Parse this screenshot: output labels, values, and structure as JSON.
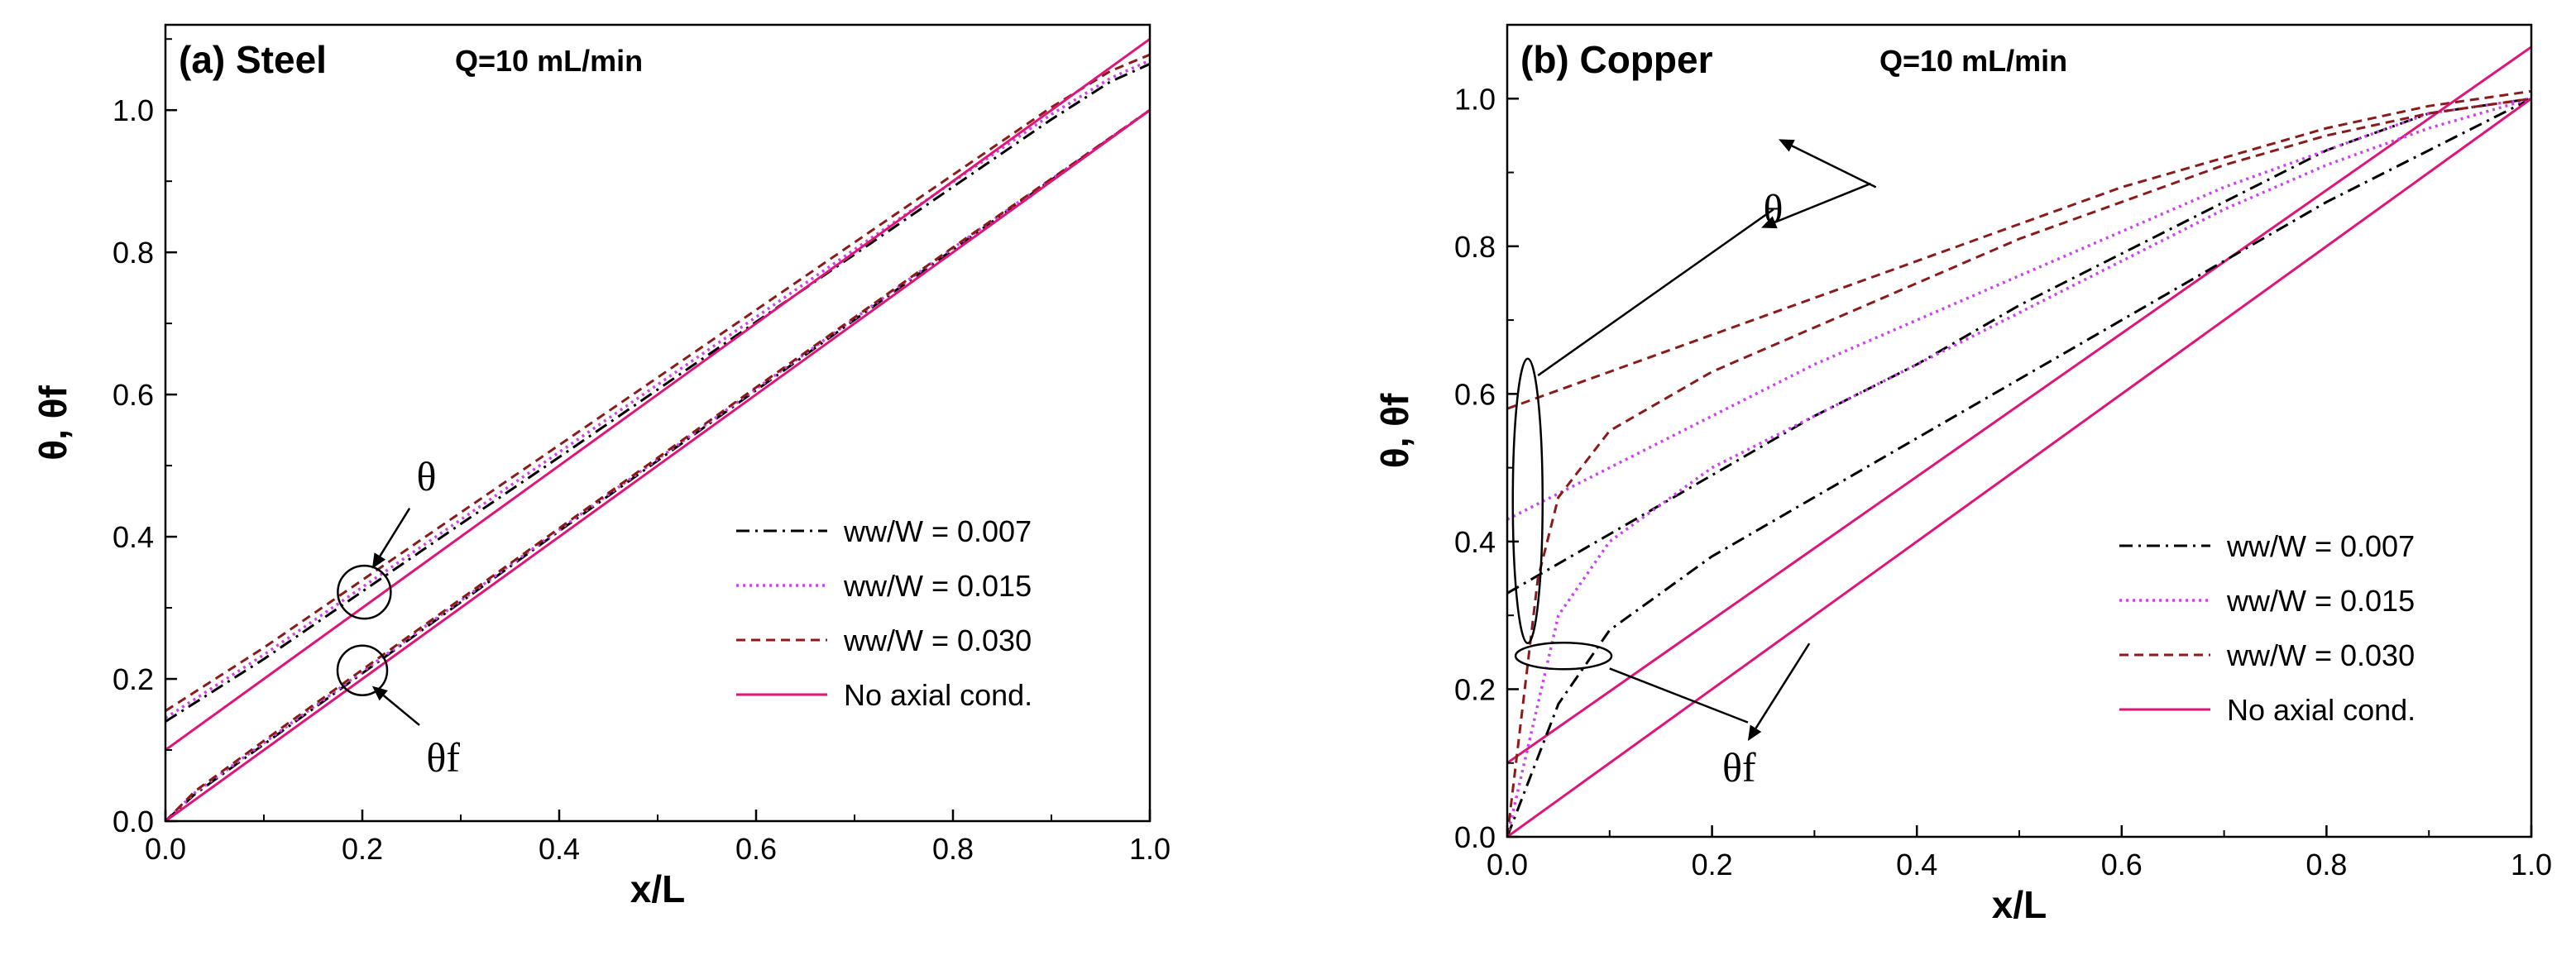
{
  "colors": {
    "s007": "#000000",
    "s015": "#cc44ee",
    "s030": "#8b1a1a",
    "noaxial": "#e0157a"
  },
  "chart_data": [
    {
      "type": "line",
      "panel": "a",
      "title": "(a) Steel",
      "annotation": "Q=10 mL/min",
      "xlabel": "x/L",
      "ylabel": "θ, θf",
      "xlim": [
        0.0,
        1.0
      ],
      "ylim": [
        0.0,
        1.12
      ],
      "xticks": [
        "0.0",
        "0.2",
        "0.4",
        "0.6",
        "0.8",
        "1.0"
      ],
      "yticks": [
        "0.0",
        "0.2",
        "0.4",
        "0.6",
        "0.8",
        "1.0"
      ],
      "legend": [
        "ww/W = 0.007",
        "ww/W = 0.015",
        "ww/W = 0.030",
        "No axial cond."
      ],
      "labels": {
        "theta": "θ",
        "theta_f": "θf"
      },
      "series": [
        {
          "name": "ww/W = 0.007",
          "quantity": "θ",
          "x": [
            0.0,
            0.1,
            0.2,
            0.3,
            0.4,
            0.5,
            0.6,
            0.7,
            0.8,
            0.9,
            0.96,
            1.0
          ],
          "y": [
            0.14,
            0.228,
            0.323,
            0.418,
            0.512,
            0.607,
            0.702,
            0.797,
            0.892,
            0.987,
            1.04,
            1.065
          ]
        },
        {
          "name": "ww/W = 0.015",
          "quantity": "θ",
          "x": [
            0.0,
            0.1,
            0.2,
            0.3,
            0.4,
            0.5,
            0.6,
            0.7,
            0.8,
            0.9,
            0.96,
            1.0
          ],
          "y": [
            0.145,
            0.234,
            0.329,
            0.424,
            0.519,
            0.614,
            0.709,
            0.804,
            0.899,
            0.994,
            1.045,
            1.07
          ]
        },
        {
          "name": "ww/W = 0.030",
          "quantity": "θ",
          "x": [
            0.0,
            0.1,
            0.2,
            0.3,
            0.4,
            0.5,
            0.6,
            0.7,
            0.8,
            0.9,
            0.96,
            1.0
          ],
          "y": [
            0.155,
            0.244,
            0.339,
            0.434,
            0.529,
            0.624,
            0.719,
            0.814,
            0.909,
            1.004,
            1.055,
            1.078
          ]
        },
        {
          "name": "No axial cond.",
          "quantity": "θ",
          "x": [
            0.0,
            1.0
          ],
          "y": [
            0.1,
            1.1
          ]
        },
        {
          "name": "ww/W = 0.007",
          "quantity": "θf",
          "x": [
            0.0,
            0.03,
            0.1,
            0.2,
            0.4,
            0.6,
            0.8,
            1.0
          ],
          "y": [
            0.0,
            0.038,
            0.108,
            0.208,
            0.408,
            0.606,
            0.804,
            1.0
          ]
        },
        {
          "name": "ww/W = 0.015",
          "quantity": "θf",
          "x": [
            0.0,
            0.03,
            0.1,
            0.2,
            0.4,
            0.6,
            0.8,
            1.0
          ],
          "y": [
            0.0,
            0.04,
            0.11,
            0.21,
            0.41,
            0.608,
            0.806,
            1.0
          ]
        },
        {
          "name": "ww/W = 0.030",
          "quantity": "θf",
          "x": [
            0.0,
            0.03,
            0.1,
            0.2,
            0.4,
            0.6,
            0.8,
            1.0
          ],
          "y": [
            0.0,
            0.042,
            0.113,
            0.213,
            0.412,
            0.61,
            0.807,
            1.0
          ]
        },
        {
          "name": "No axial cond.",
          "quantity": "θf",
          "x": [
            0.0,
            1.0
          ],
          "y": [
            0.0,
            1.0
          ]
        }
      ]
    },
    {
      "type": "line",
      "panel": "b",
      "title": "(b) Copper",
      "annotation": "Q=10 mL/min",
      "xlabel": "x/L",
      "ylabel": "θ, θf",
      "xlim": [
        0.0,
        1.0
      ],
      "ylim": [
        0.0,
        1.1
      ],
      "xticks": [
        "0.0",
        "0.2",
        "0.4",
        "0.6",
        "0.8",
        "1.0"
      ],
      "yticks": [
        "0.0",
        "0.2",
        "0.4",
        "0.6",
        "0.8",
        "1.0"
      ],
      "legend": [
        "ww/W = 0.007",
        "ww/W = 0.015",
        "ww/W = 0.030",
        "No axial cond."
      ],
      "labels": {
        "theta": "θ",
        "theta_f": "θf"
      },
      "series": [
        {
          "name": "ww/W = 0.007",
          "quantity": "θ",
          "x": [
            0.0,
            0.1,
            0.2,
            0.3,
            0.4,
            0.5,
            0.6,
            0.7,
            0.8,
            0.9,
            1.0
          ],
          "y": [
            0.33,
            0.41,
            0.49,
            0.57,
            0.64,
            0.72,
            0.79,
            0.86,
            0.93,
            0.98,
            1.0
          ]
        },
        {
          "name": "ww/W = 0.015",
          "quantity": "θ",
          "x": [
            0.0,
            0.1,
            0.2,
            0.3,
            0.4,
            0.5,
            0.6,
            0.7,
            0.8,
            0.9,
            1.0
          ],
          "y": [
            0.43,
            0.5,
            0.57,
            0.64,
            0.7,
            0.76,
            0.82,
            0.88,
            0.93,
            0.98,
            1.0
          ]
        },
        {
          "name": "ww/W = 0.030",
          "quantity": "θ",
          "x": [
            0.0,
            0.1,
            0.2,
            0.3,
            0.4,
            0.5,
            0.6,
            0.7,
            0.8,
            0.9,
            1.0
          ],
          "y": [
            0.58,
            0.63,
            0.68,
            0.73,
            0.78,
            0.83,
            0.88,
            0.92,
            0.96,
            0.99,
            1.01
          ]
        },
        {
          "name": "No axial cond.",
          "quantity": "θ",
          "x": [
            0.0,
            1.0
          ],
          "y": [
            0.1,
            1.07
          ]
        },
        {
          "name": "ww/W = 0.007",
          "quantity": "θf",
          "x": [
            0.0,
            0.05,
            0.1,
            0.2,
            0.3,
            0.4,
            0.5,
            0.6,
            0.7,
            0.8,
            0.9,
            1.0
          ],
          "y": [
            0.0,
            0.18,
            0.28,
            0.38,
            0.46,
            0.54,
            0.62,
            0.7,
            0.78,
            0.86,
            0.93,
            1.0
          ]
        },
        {
          "name": "ww/W = 0.015",
          "quantity": "θf",
          "x": [
            0.0,
            0.05,
            0.1,
            0.2,
            0.3,
            0.4,
            0.5,
            0.6,
            0.7,
            0.8,
            0.9,
            1.0
          ],
          "y": [
            0.0,
            0.3,
            0.4,
            0.5,
            0.57,
            0.64,
            0.71,
            0.78,
            0.85,
            0.91,
            0.96,
            1.0
          ]
        },
        {
          "name": "ww/W = 0.030",
          "quantity": "θf",
          "x": [
            0.0,
            0.03,
            0.05,
            0.1,
            0.2,
            0.3,
            0.4,
            0.5,
            0.6,
            0.7,
            0.8,
            0.9,
            1.0
          ],
          "y": [
            0.0,
            0.35,
            0.46,
            0.55,
            0.63,
            0.69,
            0.75,
            0.81,
            0.86,
            0.91,
            0.95,
            0.98,
            1.0
          ]
        },
        {
          "name": "No axial cond.",
          "quantity": "θf",
          "x": [
            0.0,
            1.0
          ],
          "y": [
            0.0,
            1.0
          ]
        }
      ]
    }
  ]
}
